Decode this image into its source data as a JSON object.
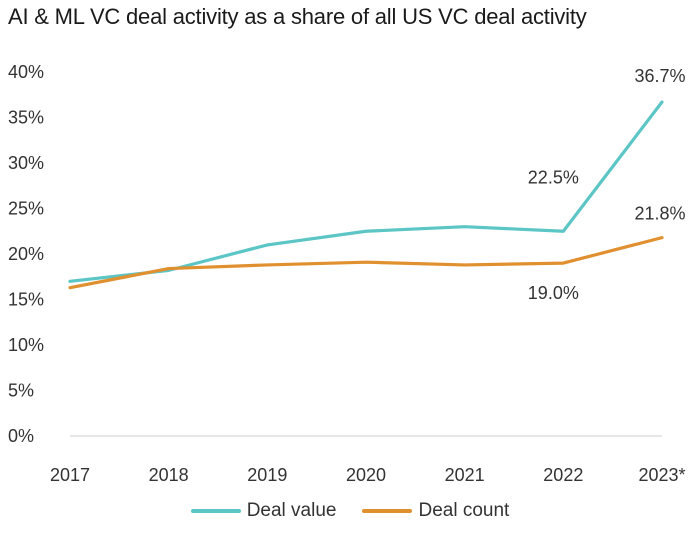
{
  "chart_data": {
    "type": "line",
    "title": "AI & ML VC deal activity as a share of all US VC deal activity",
    "categories": [
      "2017",
      "2018",
      "2019",
      "2020",
      "2021",
      "2022",
      "2023*"
    ],
    "y_ticks": [
      "0%",
      "5%",
      "10%",
      "15%",
      "20%",
      "25%",
      "30%",
      "35%",
      "40%"
    ],
    "ylim": [
      0,
      40
    ],
    "grid": false,
    "legend_position": "bottom",
    "series": [
      {
        "name": "Deal value",
        "color": "#5cc5c5",
        "values": [
          17.0,
          18.2,
          21.0,
          22.5,
          23.0,
          22.5,
          36.7
        ]
      },
      {
        "name": "Deal count",
        "color": "#e0902f",
        "values": [
          16.3,
          18.4,
          18.8,
          19.1,
          18.8,
          19.0,
          21.8
        ]
      }
    ],
    "data_labels": [
      {
        "series": 0,
        "index": 5,
        "text": "22.5%"
      },
      {
        "series": 0,
        "index": 6,
        "text": "36.7%"
      },
      {
        "series": 1,
        "index": 5,
        "text": "19.0%"
      },
      {
        "series": 1,
        "index": 6,
        "text": "21.8%"
      }
    ]
  }
}
